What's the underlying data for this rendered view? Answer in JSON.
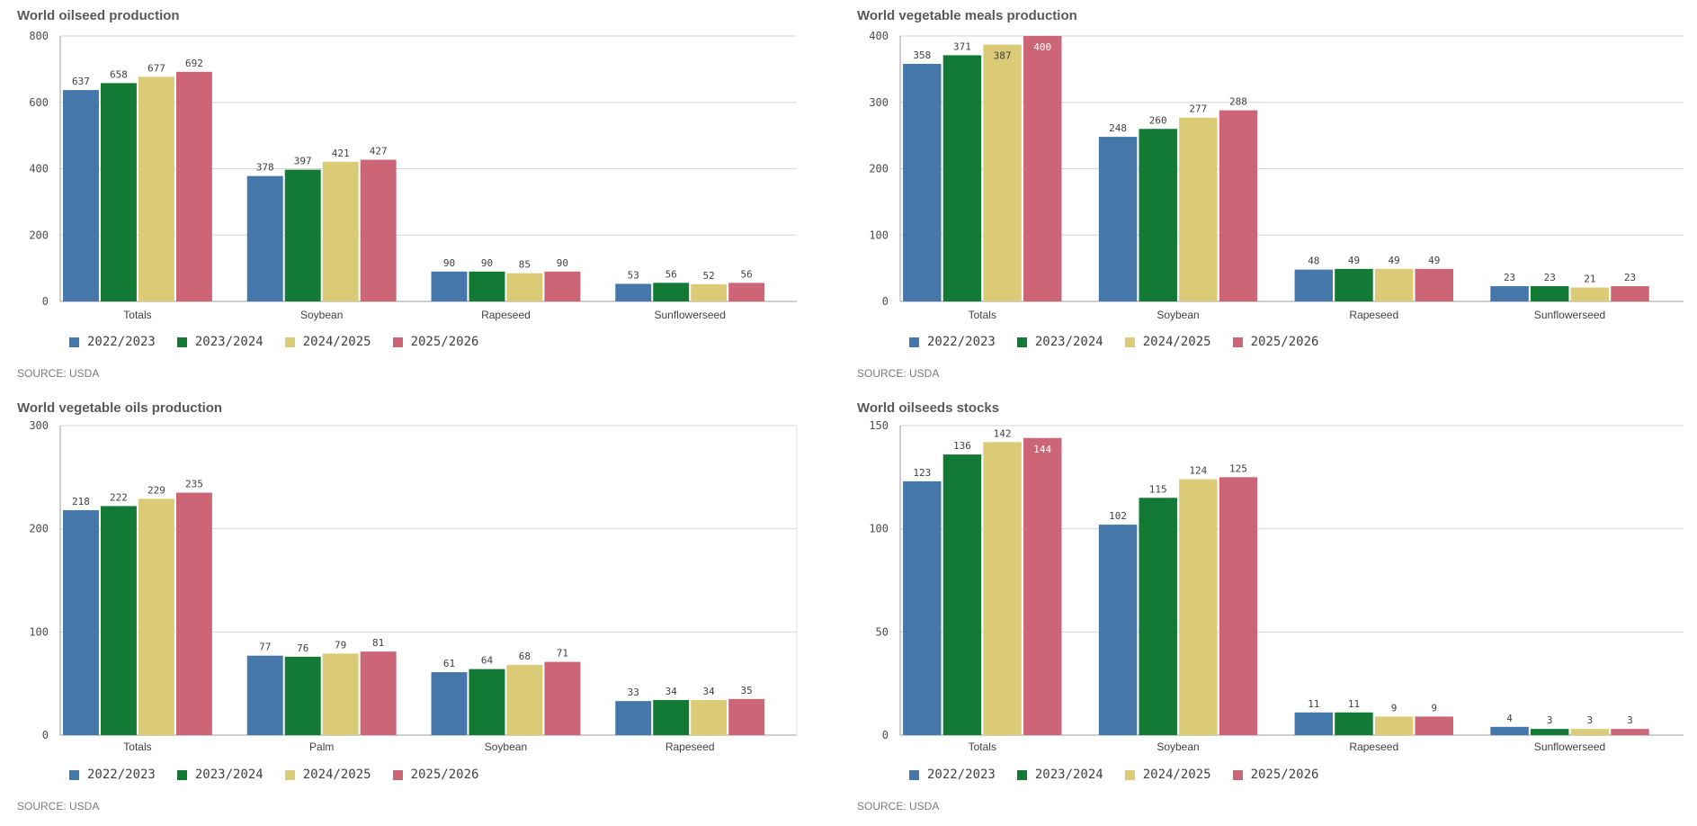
{
  "legend_colors": [
    "#4677aa",
    "#127a34",
    "#dbcb77",
    "#cc6677"
  ],
  "source": "SOURCE: USDA",
  "chart_data": [
    {
      "type": "bar",
      "title": "World oilseed production",
      "categories": [
        "Totals",
        "Soybean",
        "Rapeseed",
        "Sunflowerseed"
      ],
      "ylim": [
        0,
        800
      ],
      "yticks": [
        0,
        200,
        400,
        600,
        800
      ],
      "series": [
        {
          "name": "2022/2023",
          "values": [
            637,
            378,
            90,
            53
          ]
        },
        {
          "name": "2023/2024",
          "values": [
            658,
            397,
            90,
            56
          ]
        },
        {
          "name": "2024/2025",
          "values": [
            677,
            421,
            85,
            52
          ]
        },
        {
          "name": "2025/2026",
          "values": [
            692,
            427,
            90,
            56
          ]
        }
      ],
      "legend_position": "bottom-left",
      "grid": true
    },
    {
      "type": "bar",
      "title": "World vegetable meals production",
      "categories": [
        "Totals",
        "Soybean",
        "Rapeseed",
        "Sunflowerseed"
      ],
      "ylim": [
        0,
        400
      ],
      "yticks": [
        0,
        100,
        200,
        300,
        400
      ],
      "series": [
        {
          "name": "2022/2023",
          "values": [
            358,
            248,
            48,
            23
          ]
        },
        {
          "name": "2023/2024",
          "values": [
            371,
            260,
            49,
            23
          ]
        },
        {
          "name": "2024/2025",
          "values": [
            387,
            277,
            49,
            21
          ]
        },
        {
          "name": "2025/2026",
          "values": [
            400,
            288,
            49,
            23
          ]
        }
      ],
      "legend_position": "bottom-left",
      "grid": true
    },
    {
      "type": "bar",
      "title": "World vegetable oils production",
      "categories": [
        "Totals",
        "Palm",
        "Soybean",
        "Rapeseed"
      ],
      "ylim": [
        0,
        300
      ],
      "yticks": [
        0,
        100,
        200,
        300
      ],
      "series": [
        {
          "name": "2022/2023",
          "values": [
            218,
            77,
            61,
            33
          ]
        },
        {
          "name": "2023/2024",
          "values": [
            222,
            76,
            64,
            34
          ]
        },
        {
          "name": "2024/2025",
          "values": [
            229,
            79,
            68,
            34
          ]
        },
        {
          "name": "2025/2026",
          "values": [
            235,
            81,
            71,
            35
          ]
        }
      ],
      "legend_position": "bottom-left",
      "grid": true
    },
    {
      "type": "bar",
      "title": "World oilseeds stocks",
      "categories": [
        "Totals",
        "Soybean",
        "Rapeseed",
        "Sunflowerseed"
      ],
      "ylim": [
        0,
        150
      ],
      "yticks": [
        0,
        50,
        100,
        150
      ],
      "series": [
        {
          "name": "2022/2023",
          "values": [
            123,
            102,
            11,
            4
          ]
        },
        {
          "name": "2023/2024",
          "values": [
            136,
            115,
            11,
            3
          ]
        },
        {
          "name": "2024/2025",
          "values": [
            142,
            124,
            9,
            3
          ]
        },
        {
          "name": "2025/2026",
          "values": [
            144,
            125,
            9,
            3
          ]
        }
      ],
      "legend_position": "bottom-left",
      "grid": true
    }
  ]
}
